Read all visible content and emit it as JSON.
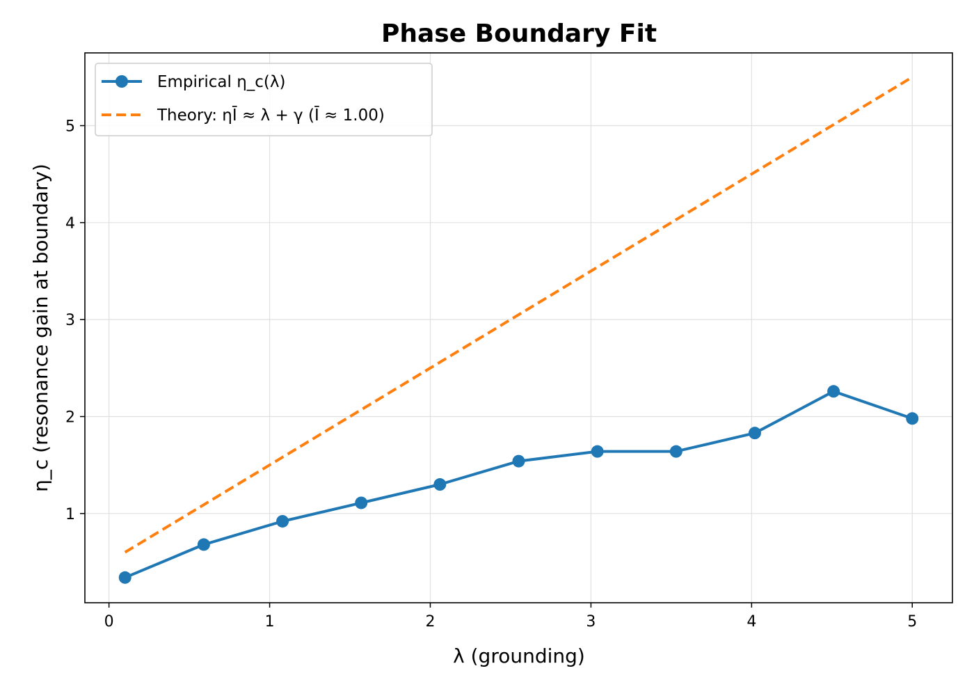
{
  "chart_data": {
    "type": "line",
    "title": "Phase Boundary Fit",
    "xlabel": "λ (grounding)",
    "ylabel": "η_c (resonance gain at boundary)",
    "xlim": [
      -0.15,
      5.25
    ],
    "ylim": [
      0.08,
      5.75
    ],
    "xticks": [
      0,
      1,
      2,
      3,
      4,
      5
    ],
    "yticks": [
      1,
      2,
      3,
      4,
      5
    ],
    "grid": true,
    "legend_position": "top-left",
    "series": [
      {
        "name": "Empirical η_c(λ)",
        "color": "#1f77b4",
        "style": "solid",
        "marker": "circle",
        "x": [
          0.1,
          0.59,
          1.08,
          1.57,
          2.06,
          2.55,
          3.04,
          3.53,
          4.02,
          4.51,
          5.0
        ],
        "y": [
          0.34,
          0.68,
          0.92,
          1.11,
          1.3,
          1.54,
          1.64,
          1.64,
          1.83,
          2.26,
          1.98
        ]
      },
      {
        "name": "Theory: ηĪ ≈ λ + γ  (Ī ≈ 1.00)",
        "color": "#ff7f0e",
        "style": "dashed",
        "marker": "none",
        "x": [
          0.1,
          5.0
        ],
        "y": [
          0.6,
          5.5
        ]
      }
    ]
  }
}
